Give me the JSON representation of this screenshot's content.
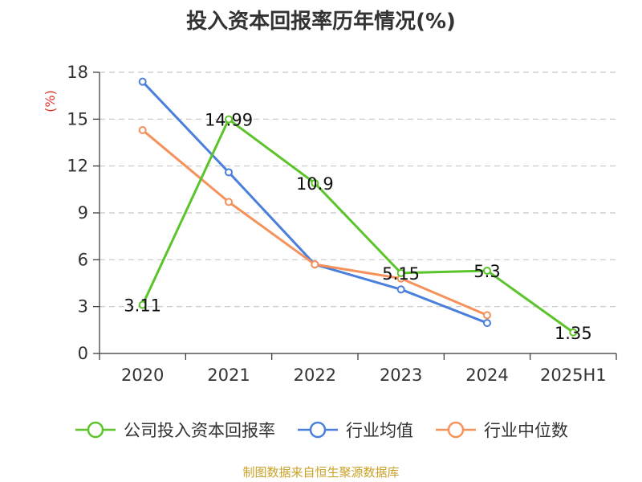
{
  "chart_data": {
    "type": "line",
    "title": "投入资本回报率历年情况(%)",
    "y_unit": "(%)",
    "categories": [
      "2020",
      "2021",
      "2022",
      "2023",
      "2024",
      "2025H1"
    ],
    "ylim": [
      0,
      18
    ],
    "yticks": [
      0,
      3,
      6,
      9,
      12,
      15,
      18
    ],
    "grid": true,
    "legend_position": "bottom",
    "series": [
      {
        "name": "公司投入资本回报率",
        "color": "#5cc42b",
        "values": [
          3.11,
          14.99,
          10.9,
          5.15,
          5.3,
          1.35
        ],
        "labels": [
          "3.11",
          "14.99",
          "10.9",
          "5.15",
          "5.3",
          "1.35"
        ]
      },
      {
        "name": "行业均值",
        "color": "#4a7fdc",
        "values": [
          17.4,
          11.6,
          5.7,
          4.1,
          1.95,
          null
        ]
      },
      {
        "name": "行业中位数",
        "color": "#f5915a",
        "values": [
          14.3,
          9.7,
          5.7,
          4.8,
          2.45,
          null
        ]
      }
    ]
  },
  "source_note": "制图数据来自恒生聚源数据库"
}
